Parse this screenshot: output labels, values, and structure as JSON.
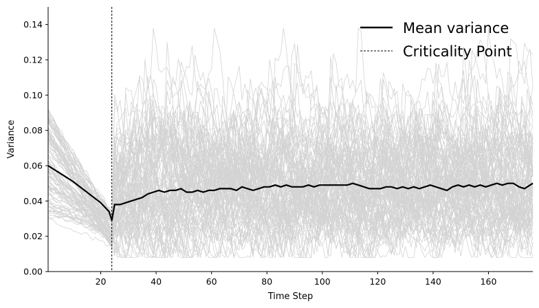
{
  "chart_data": {
    "type": "line",
    "title": "",
    "xlabel": "Time Step",
    "ylabel": "Variance",
    "xlim": [
      1,
      176
    ],
    "ylim": [
      0,
      0.15
    ],
    "x_ticks": [
      20,
      40,
      60,
      80,
      100,
      120,
      140,
      160
    ],
    "y_ticks": [
      0.0,
      0.02,
      0.04,
      0.06,
      0.08,
      0.1,
      0.12,
      0.14
    ],
    "y_tick_labels": [
      "0.00",
      "0.02",
      "0.04",
      "0.06",
      "0.08",
      "0.10",
      "0.12",
      "0.14"
    ],
    "grid": false,
    "legend_position": "top-right",
    "criticality_point": 24,
    "background_traces": {
      "count": 100,
      "color": "#d3d3d3",
      "note_range_pre": [
        0.018,
        0.094
      ],
      "note_range_post": [
        0.008,
        0.14
      ]
    },
    "series": [
      {
        "name": "Mean variance",
        "color": "#000000",
        "x": [
          1,
          5,
          10,
          15,
          20,
          23,
          24,
          25,
          27,
          29,
          31,
          33,
          35,
          37,
          39,
          41,
          43,
          45,
          47,
          49,
          51,
          53,
          55,
          57,
          59,
          61,
          63,
          65,
          67,
          69,
          71,
          73,
          75,
          77,
          79,
          81,
          83,
          85,
          87,
          89,
          91,
          93,
          95,
          97,
          99,
          101,
          103,
          105,
          107,
          109,
          111,
          113,
          115,
          117,
          119,
          121,
          123,
          125,
          127,
          129,
          131,
          133,
          135,
          137,
          139,
          141,
          143,
          145,
          147,
          149,
          151,
          153,
          155,
          157,
          159,
          161,
          163,
          165,
          167,
          169,
          171,
          173,
          175,
          176
        ],
        "values": [
          0.06,
          0.056,
          0.051,
          0.045,
          0.039,
          0.034,
          0.029,
          0.038,
          0.038,
          0.039,
          0.04,
          0.041,
          0.042,
          0.044,
          0.045,
          0.046,
          0.045,
          0.046,
          0.046,
          0.047,
          0.045,
          0.045,
          0.046,
          0.045,
          0.046,
          0.046,
          0.047,
          0.047,
          0.047,
          0.046,
          0.048,
          0.047,
          0.046,
          0.047,
          0.048,
          0.048,
          0.049,
          0.048,
          0.049,
          0.048,
          0.048,
          0.048,
          0.049,
          0.048,
          0.049,
          0.049,
          0.049,
          0.049,
          0.049,
          0.049,
          0.05,
          0.049,
          0.048,
          0.047,
          0.047,
          0.047,
          0.048,
          0.048,
          0.047,
          0.048,
          0.047,
          0.048,
          0.047,
          0.048,
          0.049,
          0.048,
          0.047,
          0.046,
          0.048,
          0.049,
          0.048,
          0.049,
          0.048,
          0.049,
          0.048,
          0.049,
          0.05,
          0.049,
          0.05,
          0.05,
          0.048,
          0.047,
          0.049,
          0.05
        ]
      },
      {
        "name": "Criticality Point",
        "color": "#000000",
        "style": "dashed"
      }
    ]
  }
}
